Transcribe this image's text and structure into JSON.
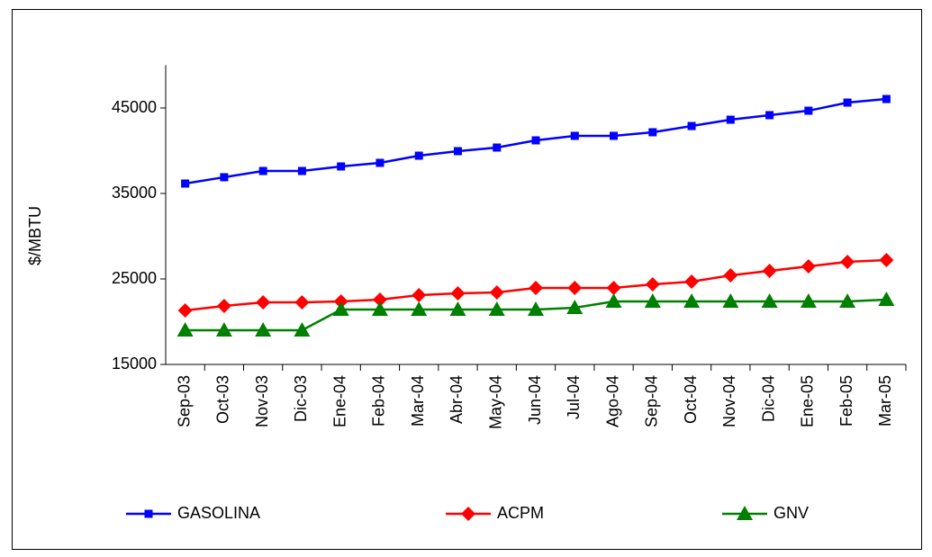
{
  "chart_data": {
    "type": "line",
    "y_label": "$/MBTU",
    "categories": [
      "Sep-03",
      "Oct-03",
      "Nov-03",
      "Dic-03",
      "Ene-04",
      "Feb-04",
      "Mar-04",
      "Abr-04",
      "May-04",
      "Jun-04",
      "Jul-04",
      "Ago-04",
      "Sep-04",
      "Oct-04",
      "Nov-04",
      "Dic-04",
      "Ene-05",
      "Feb-05",
      "Mar-05"
    ],
    "series": [
      {
        "name": "GASOLINA",
        "color": "#0000ff",
        "marker": "square",
        "values": [
          36160,
          36900,
          37630,
          37630,
          38160,
          38580,
          39420,
          39950,
          40370,
          41210,
          41740,
          41740,
          42160,
          42890,
          43630,
          44160,
          44680,
          45630,
          46050
        ]
      },
      {
        "name": "ACPM",
        "color": "#ff0000",
        "marker": "diamond",
        "values": [
          21320,
          21840,
          22260,
          22260,
          22370,
          22580,
          23100,
          23320,
          23420,
          23950,
          23950,
          23950,
          24370,
          24680,
          25420,
          25950,
          26470,
          27000,
          27210
        ]
      },
      {
        "name": "GNV",
        "color": "#008000",
        "marker": "triangle",
        "values": [
          19000,
          19000,
          19000,
          19000,
          21420,
          21420,
          21420,
          21420,
          21420,
          21420,
          21630,
          22370,
          22370,
          22370,
          22370,
          22370,
          22370,
          22370,
          22580
        ]
      }
    ],
    "ylim": [
      15000,
      50000
    ],
    "yticks": [
      15000,
      25000,
      35000,
      45000
    ],
    "grid": false,
    "legend": "bottom"
  }
}
